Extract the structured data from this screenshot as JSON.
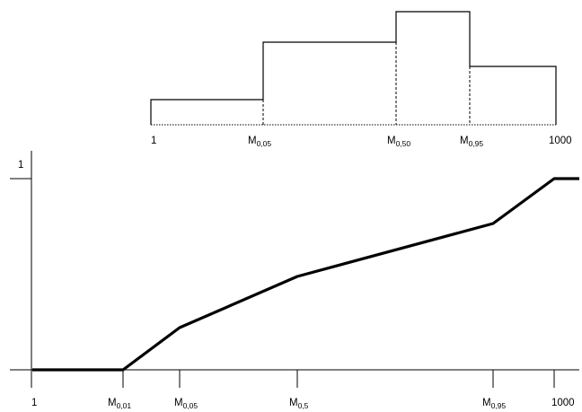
{
  "histogram": {
    "x_labels": [
      {
        "id": "one",
        "base": "1",
        "sub": ""
      },
      {
        "id": "m05",
        "base": "M",
        "sub": "0,05"
      },
      {
        "id": "m50",
        "base": "M",
        "sub": "0,50"
      },
      {
        "id": "m95",
        "base": "M",
        "sub": "0,95"
      },
      {
        "id": "thousand",
        "base": "1000",
        "sub": ""
      }
    ]
  },
  "cdf_plot": {
    "y_label": "1",
    "x_labels": [
      {
        "id": "one",
        "base": "1",
        "sub": ""
      },
      {
        "id": "m01",
        "base": "M",
        "sub": "0,01"
      },
      {
        "id": "m05",
        "base": "M",
        "sub": "0,05"
      },
      {
        "id": "m5",
        "base": "M",
        "sub": "0,5"
      },
      {
        "id": "m95",
        "base": "M",
        "sub": "0,95"
      },
      {
        "id": "thousand",
        "base": "1000",
        "sub": ""
      }
    ]
  },
  "colors": {
    "stroke": "#000000",
    "background": "#ffffff"
  }
}
